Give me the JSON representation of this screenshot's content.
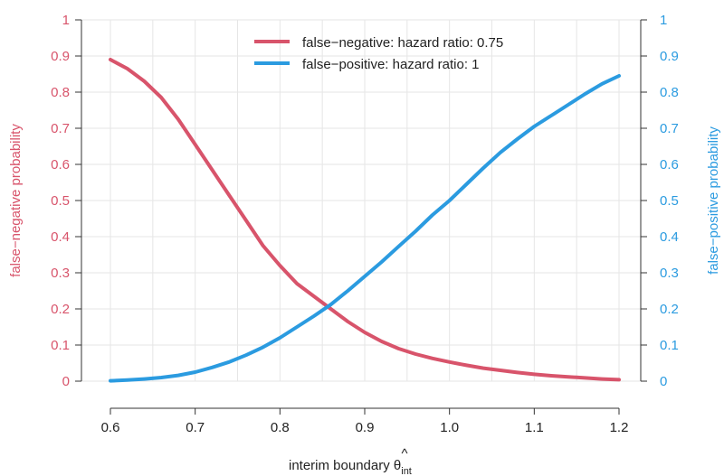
{
  "chart_data": {
    "type": "line",
    "xlabel": {
      "main": "interim boundary ",
      "symbol": "θ",
      "hat": "^",
      "subscript": "int"
    },
    "ylabel_left": "false−negative probability",
    "ylabel_right": "false−positive probability",
    "xlim": [
      0.6,
      1.2
    ],
    "ylim": [
      0,
      1
    ],
    "x_ticks": [
      0.6,
      0.7,
      0.8,
      0.9,
      1.0,
      1.1,
      1.2
    ],
    "x_tick_labels": [
      "0.6",
      "0.7",
      "0.8",
      "0.9",
      "1.0",
      "1.1",
      "1.2"
    ],
    "y_ticks": [
      0,
      0.1,
      0.2,
      0.3,
      0.4,
      0.5,
      0.6,
      0.7,
      0.8,
      0.9,
      1
    ],
    "y_tick_labels": [
      "0",
      "0.1",
      "0.2",
      "0.3",
      "0.4",
      "0.5",
      "0.6",
      "0.7",
      "0.8",
      "0.9",
      "1"
    ],
    "grid": true,
    "legend_position": "top-center",
    "series": [
      {
        "name": "false−negative: hazard ratio: 0.75",
        "axis": "left",
        "color": "#D8546B",
        "x": [
          0.6,
          0.62,
          0.64,
          0.66,
          0.68,
          0.7,
          0.72,
          0.74,
          0.76,
          0.78,
          0.8,
          0.82,
          0.84,
          0.86,
          0.88,
          0.9,
          0.92,
          0.94,
          0.96,
          0.98,
          1.0,
          1.02,
          1.04,
          1.06,
          1.08,
          1.1,
          1.12,
          1.14,
          1.16,
          1.18,
          1.2
        ],
        "y": [
          0.89,
          0.865,
          0.83,
          0.785,
          0.725,
          0.655,
          0.585,
          0.515,
          0.445,
          0.375,
          0.32,
          0.27,
          0.235,
          0.2,
          0.165,
          0.135,
          0.11,
          0.09,
          0.075,
          0.063,
          0.053,
          0.044,
          0.036,
          0.03,
          0.024,
          0.019,
          0.015,
          0.012,
          0.009,
          0.006,
          0.004
        ]
      },
      {
        "name": "false−positive: hazard ratio: 1",
        "axis": "right",
        "color": "#2B9BE0",
        "x": [
          0.6,
          0.62,
          0.64,
          0.66,
          0.68,
          0.7,
          0.72,
          0.74,
          0.76,
          0.78,
          0.8,
          0.82,
          0.84,
          0.86,
          0.88,
          0.9,
          0.92,
          0.94,
          0.96,
          0.98,
          1.0,
          1.02,
          1.04,
          1.06,
          1.08,
          1.1,
          1.12,
          1.14,
          1.16,
          1.18,
          1.2
        ],
        "y": [
          0.001,
          0.003,
          0.006,
          0.01,
          0.016,
          0.025,
          0.038,
          0.053,
          0.072,
          0.094,
          0.12,
          0.15,
          0.18,
          0.212,
          0.25,
          0.29,
          0.33,
          0.373,
          0.415,
          0.46,
          0.5,
          0.545,
          0.59,
          0.633,
          0.67,
          0.705,
          0.735,
          0.765,
          0.795,
          0.823,
          0.845
        ]
      }
    ]
  }
}
